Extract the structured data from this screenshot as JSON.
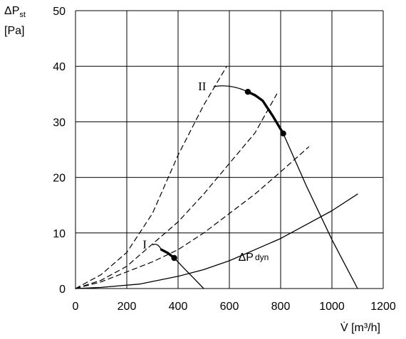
{
  "chart_data": {
    "type": "line",
    "title": "",
    "ylabel_symbol": "ΔP",
    "ylabel_sub": "st",
    "ylabel_unit": "[Pa]",
    "xlabel": "V̇ [m³/h]",
    "xlim": [
      0,
      1200
    ],
    "ylim": [
      0,
      50
    ],
    "xticks": [
      0,
      200,
      400,
      600,
      800,
      1000,
      1200
    ],
    "yticks": [
      0,
      10,
      20,
      30,
      40,
      50
    ],
    "grid": true,
    "series": [
      {
        "name": "I",
        "style": "solid",
        "x": [
          335,
          360,
          385,
          420,
          460,
          500
        ],
        "y": [
          7.0,
          6.4,
          5.5,
          3.8,
          1.9,
          0.0
        ]
      },
      {
        "name": "I",
        "style": "bold",
        "x": [
          335,
          360,
          385
        ],
        "y": [
          7.0,
          6.4,
          5.5
        ]
      },
      {
        "name": "II",
        "style": "solid",
        "x": [
          672,
          730,
          770,
          810,
          900,
          1000,
          1100
        ],
        "y": [
          35.4,
          33.8,
          31.0,
          27.9,
          18.5,
          8.8,
          0.0
        ]
      },
      {
        "name": "II",
        "style": "bold",
        "x": [
          672,
          700,
          730,
          770,
          810
        ],
        "y": [
          35.4,
          34.8,
          33.8,
          31.0,
          27.9
        ]
      },
      {
        "name": "ΔP dyn",
        "style": "solid",
        "x": [
          0,
          100,
          250,
          400,
          500,
          600,
          700,
          800,
          900,
          1000,
          1100
        ],
        "y": [
          0.0,
          0.2,
          0.8,
          2.2,
          3.4,
          5.0,
          7.0,
          9.0,
          11.5,
          14.0,
          17.0
        ]
      },
      {
        "name": "",
        "style": "dashed",
        "x": [
          0,
          100,
          200,
          300,
          400,
          500,
          590
        ],
        "y": [
          0.0,
          2.5,
          6.5,
          13.5,
          24.0,
          33.0,
          40.0
        ]
      },
      {
        "name": "",
        "style": "dashed",
        "x": [
          0,
          100,
          200,
          300,
          400,
          500,
          600,
          700,
          785
        ],
        "y": [
          0.0,
          1.5,
          4.0,
          8.0,
          12.0,
          17.0,
          22.5,
          28.0,
          35.0
        ]
      },
      {
        "name": "",
        "style": "dashed",
        "x": [
          0,
          100,
          200,
          300,
          400,
          500,
          600,
          700,
          800,
          910
        ],
        "y": [
          0.0,
          1.2,
          3.0,
          4.8,
          7.0,
          10.0,
          13.5,
          17.0,
          21.0,
          25.5
        ]
      }
    ],
    "points": [
      {
        "x": 385,
        "y": 5.5
      },
      {
        "x": 672,
        "y": 35.4
      },
      {
        "x": 810,
        "y": 27.9
      }
    ],
    "labels": [
      {
        "text": "I",
        "style": "roman",
        "x": 262,
        "y": 7.2,
        "leader_to": [
          335,
          7.0
        ]
      },
      {
        "text": "II",
        "style": "roman",
        "x": 478,
        "y": 35.7,
        "leader_to": [
          672,
          35.4
        ]
      },
      {
        "text_main": "ΔP",
        "text_sub": "dyn",
        "style": "curve",
        "x": 635,
        "y": 5.0
      }
    ],
    "colors": {
      "line": "#000000",
      "grid": "#000000",
      "background": "#ffffff"
    }
  }
}
